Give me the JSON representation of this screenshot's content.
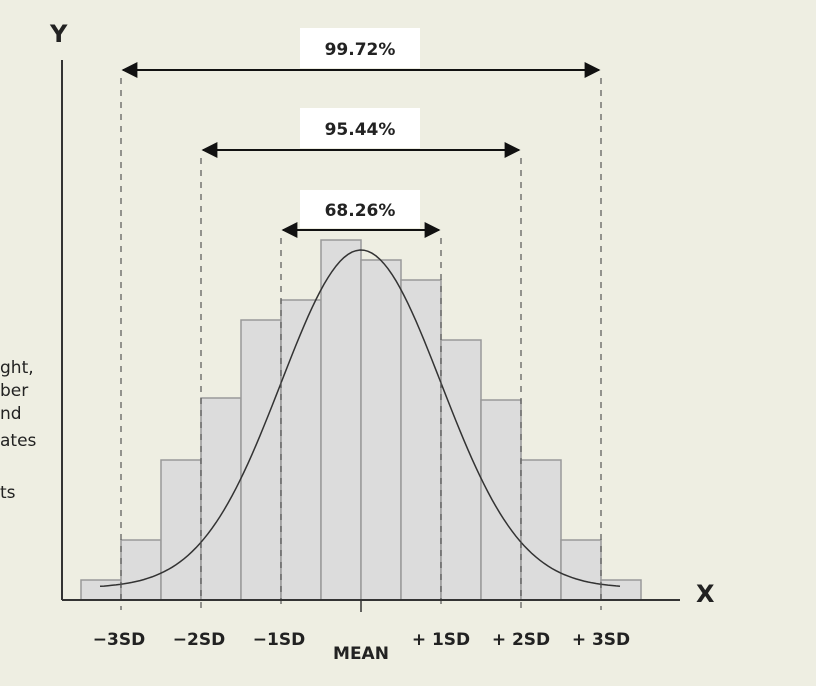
{
  "axes": {
    "y_label": "Y",
    "x_label": "X"
  },
  "ranges": [
    "99.72%",
    "95.44%",
    "68.26%"
  ],
  "ticks": [
    "−3SD",
    "−2SD",
    "−1SD",
    "MEAN",
    "+ 1SD",
    "+ 2SD",
    "+ 3SD"
  ],
  "side_text": [
    "ght,",
    "ber",
    "nd",
    "ates",
    "ts"
  ]
}
